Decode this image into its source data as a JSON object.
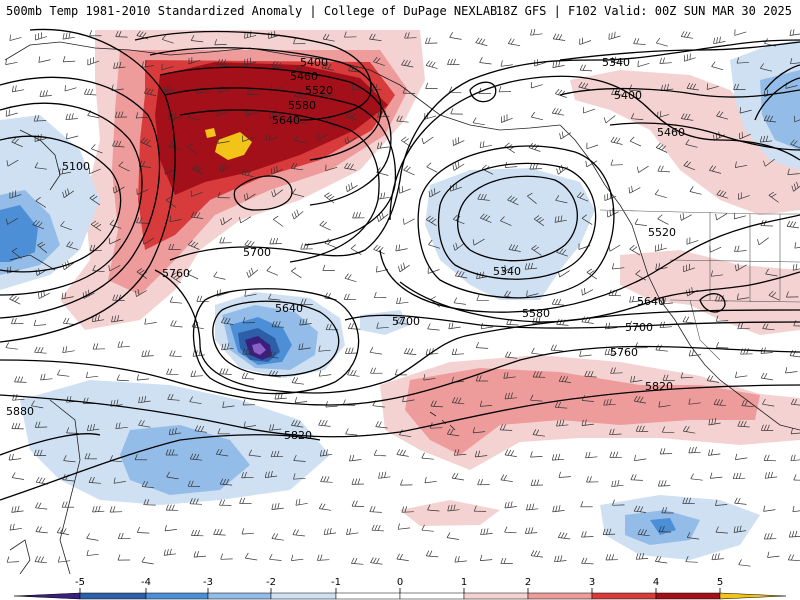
{
  "header": {
    "title_left": "500mb Temp 1981-2010 Standardized Anomaly | College of DuPage NEXLAB",
    "title_right": "18Z GFS | F102 Valid: 00Z SUN MAR 30 2025"
  },
  "colors": {
    "deep_blue": "#3b1f7d",
    "blue1": "#2c5fa8",
    "blue2": "#4c8fd6",
    "blue3": "#93bde8",
    "blue4": "#cfe0f3",
    "red1": "#f5d2d2",
    "red2": "#ee9b9b",
    "red3": "#d83b3b",
    "red4": "#a3101a",
    "yellow": "#f2c41a"
  },
  "contour_labels": [
    {
      "id": "5400-a",
      "text": "5400"
    },
    {
      "id": "5460-a",
      "text": "5460"
    },
    {
      "id": "5520-a",
      "text": "5520"
    },
    {
      "id": "5580-a",
      "text": "5580"
    },
    {
      "id": "5640-a",
      "text": "5640"
    },
    {
      "id": "5100",
      "text": "5100"
    },
    {
      "id": "5340-a",
      "text": "5340"
    },
    {
      "id": "5400-b",
      "text": "5400"
    },
    {
      "id": "5460-b",
      "text": "5460"
    },
    {
      "id": "5520-b",
      "text": "5520"
    },
    {
      "id": "5340-b",
      "text": "5340"
    },
    {
      "id": "5580-b",
      "text": "5580"
    },
    {
      "id": "5640-b",
      "text": "5640"
    },
    {
      "id": "5700-a",
      "text": "5700"
    },
    {
      "id": "5760-a",
      "text": "5760"
    },
    {
      "id": "5700-b",
      "text": "5700"
    },
    {
      "id": "5640-c",
      "text": "5640"
    },
    {
      "id": "5700-c",
      "text": "5700"
    },
    {
      "id": "5760-b",
      "text": "5760"
    },
    {
      "id": "5820-a",
      "text": "5820"
    },
    {
      "id": "5880",
      "text": "5880"
    },
    {
      "id": "5820-b",
      "text": "5820"
    }
  ],
  "legend": {
    "ticks": [
      "-5",
      "-4",
      "-3",
      "-2",
      "-1",
      "0",
      "1",
      "2",
      "3",
      "4",
      "5"
    ],
    "colors": [
      "#3b1f7d",
      "#2c5fa8",
      "#4c8fd6",
      "#93bde8",
      "#cfe0f3",
      "#ffffff",
      "#ffffff",
      "#f5d2d2",
      "#ee9b9b",
      "#d83b3b",
      "#a3101a",
      "#f2c41a"
    ]
  }
}
